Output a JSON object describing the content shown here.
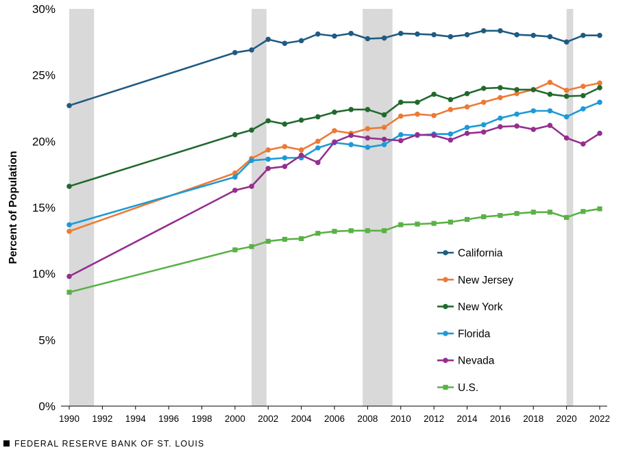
{
  "chart_data": {
    "type": "line",
    "title": "",
    "xlabel": "",
    "ylabel": "Percent of Population",
    "xlim": [
      1990,
      2022
    ],
    "ylim": [
      0,
      30
    ],
    "x_ticks": [
      "1990",
      "1992",
      "1994",
      "1996",
      "1998",
      "2000",
      "2002",
      "2004",
      "2006",
      "2008",
      "2010",
      "2012",
      "2014",
      "2016",
      "2018",
      "2020",
      "2022"
    ],
    "y_ticks": [
      "0%",
      "5%",
      "10%",
      "15%",
      "20%",
      "25%",
      "30%"
    ],
    "y_tick_values": [
      0,
      5,
      10,
      15,
      20,
      25,
      30
    ],
    "recessions": [
      [
        1990.0,
        1991.5
      ],
      [
        2001.0,
        2001.9
      ],
      [
        2007.7,
        2009.5
      ],
      [
        2020.0,
        2020.4
      ]
    ],
    "recession_color": "#d9d9d9",
    "x": [
      1990,
      2000,
      2001,
      2002,
      2003,
      2004,
      2005,
      2006,
      2007,
      2008,
      2009,
      2010,
      2011,
      2012,
      2013,
      2014,
      2015,
      2016,
      2017,
      2018,
      2019,
      2020,
      2021,
      2022
    ],
    "series": [
      {
        "name": "California",
        "color": "#1f5b82",
        "marker": "circle",
        "values": [
          22.7,
          26.7,
          26.9,
          27.7,
          27.4,
          27.6,
          28.1,
          27.95,
          28.15,
          27.75,
          27.8,
          28.15,
          28.1,
          28.05,
          27.9,
          28.05,
          28.35,
          28.35,
          28.05,
          28.0,
          27.9,
          27.5,
          28.0,
          28.0
        ]
      },
      {
        "name": "New Jersey",
        "color": "#ec7a35",
        "marker": "circle",
        "values": [
          13.2,
          17.6,
          18.7,
          19.35,
          19.6,
          19.35,
          20.0,
          20.8,
          20.6,
          20.95,
          21.05,
          21.9,
          22.05,
          21.95,
          22.4,
          22.6,
          22.95,
          23.3,
          23.6,
          23.9,
          24.45,
          23.85,
          24.15,
          24.4
        ]
      },
      {
        "name": "New York",
        "color": "#22692e",
        "marker": "circle",
        "values": [
          16.6,
          20.5,
          20.85,
          21.55,
          21.3,
          21.6,
          21.85,
          22.2,
          22.4,
          22.4,
          22.0,
          22.95,
          22.95,
          23.55,
          23.15,
          23.6,
          24.0,
          24.05,
          23.9,
          23.9,
          23.55,
          23.4,
          23.45,
          24.05
        ]
      },
      {
        "name": "Florida",
        "color": "#1d9ad6",
        "marker": "circle",
        "values": [
          13.7,
          17.3,
          18.55,
          18.65,
          18.75,
          18.75,
          19.5,
          19.9,
          19.75,
          19.55,
          19.75,
          20.5,
          20.45,
          20.55,
          20.55,
          21.05,
          21.25,
          21.75,
          22.05,
          22.3,
          22.3,
          21.85,
          22.45,
          22.95
        ]
      },
      {
        "name": "Nevada",
        "color": "#952e8f",
        "marker": "circle",
        "values": [
          9.8,
          16.3,
          16.6,
          17.95,
          18.1,
          18.95,
          18.4,
          19.95,
          20.45,
          20.25,
          20.15,
          20.05,
          20.5,
          20.45,
          20.1,
          20.6,
          20.7,
          21.1,
          21.15,
          20.9,
          21.2,
          20.25,
          19.8,
          20.6
        ]
      },
      {
        "name": "U.S.",
        "color": "#5ab146",
        "marker": "square",
        "values": [
          8.6,
          11.8,
          12.05,
          12.45,
          12.6,
          12.65,
          13.05,
          13.2,
          13.25,
          13.25,
          13.25,
          13.7,
          13.75,
          13.8,
          13.9,
          14.1,
          14.3,
          14.4,
          14.55,
          14.65,
          14.65,
          14.25,
          14.7,
          14.9
        ]
      }
    ],
    "grid": false,
    "legend_position": "lower-right"
  },
  "footer": {
    "source_label": "FEDERAL RESERVE BANK OF ST. LOUIS"
  }
}
